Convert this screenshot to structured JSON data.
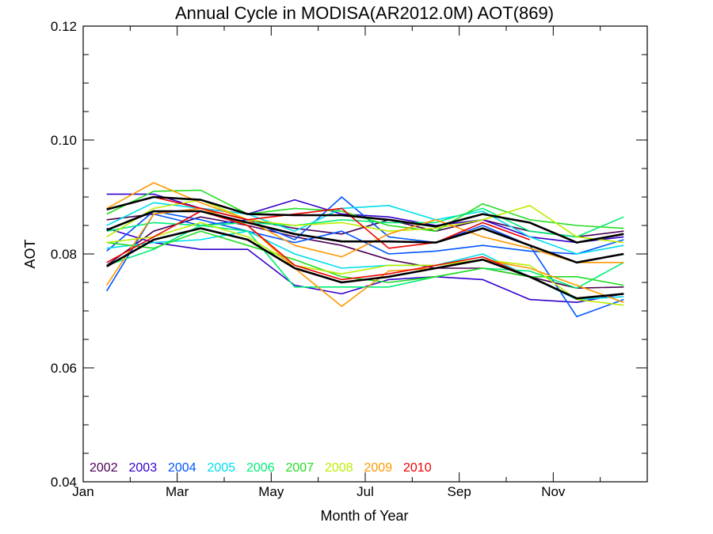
{
  "chart_data": {
    "type": "line",
    "title": "Annual Cycle in MODISA(AR2012.0M) AOT(869)",
    "xlabel": "Month of Year",
    "ylabel": "AOT",
    "xlim": [
      0,
      12
    ],
    "ylim": [
      0.04,
      0.12
    ],
    "x_ticks": [
      0,
      2,
      4,
      6,
      8,
      10
    ],
    "x_tick_labels": [
      "Jan",
      "Mar",
      "May",
      "Jul",
      "Sep",
      "Nov"
    ],
    "y_ticks": [
      0.04,
      0.06,
      0.08,
      0.1,
      0.12
    ],
    "y_tick_labels": [
      "0.04",
      "0.06",
      "0.08",
      "0.10",
      "0.12"
    ],
    "grid": false,
    "legend_position": "bottom-left",
    "x": [
      0.5,
      1.5,
      2.5,
      3.5,
      4.5,
      5.5,
      6.5,
      7.5,
      8.5,
      9.5,
      10.5,
      11.5
    ],
    "series": [
      {
        "name": "2002",
        "color": "#4b0055",
        "values": [
          0.078,
          0.084,
          0.0865,
          0.085,
          0.083,
          0.0815,
          0.079,
          0.0775,
          0.0775,
          0.076,
          0.074,
          0.0742
        ]
      },
      {
        "name": "2002",
        "color": "#4b0055",
        "values": [
          0.086,
          0.087,
          0.088,
          0.086,
          0.0845,
          0.0835,
          0.086,
          0.084,
          0.086,
          0.084,
          0.083,
          0.084
        ]
      },
      {
        "name": "2003",
        "color": "#3300cc",
        "values": [
          0.0905,
          0.0905,
          0.088,
          0.087,
          0.0895,
          0.087,
          0.0865,
          0.085,
          0.086,
          0.083,
          0.082,
          0.083
        ]
      },
      {
        "name": "2003",
        "color": "#3300cc",
        "values": [
          0.0845,
          0.082,
          0.0808,
          0.0808,
          0.0745,
          0.073,
          0.0755,
          0.076,
          0.0755,
          0.072,
          0.0715,
          0.073
        ]
      },
      {
        "name": "2004",
        "color": "#0055ff",
        "values": [
          0.0735,
          0.087,
          0.085,
          0.086,
          0.0825,
          0.09,
          0.083,
          0.082,
          0.085,
          0.0815,
          0.069,
          0.072
        ]
      },
      {
        "name": "2004",
        "color": "#0055ff",
        "values": [
          0.0805,
          0.0875,
          0.086,
          0.084,
          0.082,
          0.084,
          0.08,
          0.0805,
          0.0815,
          0.0805,
          0.08,
          0.0825
        ]
      },
      {
        "name": "2005",
        "color": "#00ddee",
        "values": [
          0.081,
          0.082,
          0.0825,
          0.084,
          0.08,
          0.0775,
          0.078,
          0.078,
          0.08,
          0.076,
          0.072,
          0.0725
        ]
      },
      {
        "name": "2005",
        "color": "#00ddee",
        "values": [
          0.085,
          0.089,
          0.088,
          0.087,
          0.084,
          0.088,
          0.0885,
          0.086,
          0.0875,
          0.083,
          0.08,
          0.0815
        ]
      },
      {
        "name": "2006",
        "color": "#00ee77",
        "values": [
          0.078,
          0.0808,
          0.085,
          0.084,
          0.0742,
          0.0742,
          0.0742,
          0.076,
          0.0775,
          0.077,
          0.074,
          0.0785
        ]
      },
      {
        "name": "2006",
        "color": "#00ee77",
        "values": [
          0.084,
          0.0855,
          0.085,
          0.0855,
          0.085,
          0.086,
          0.0855,
          0.0855,
          0.088,
          0.084,
          0.083,
          0.0865
        ]
      },
      {
        "name": "2007",
        "color": "#22dd22",
        "values": [
          0.087,
          0.091,
          0.0912,
          0.087,
          0.088,
          0.0875,
          0.085,
          0.084,
          0.0888,
          0.086,
          0.085,
          0.0845
        ]
      },
      {
        "name": "2007",
        "color": "#22dd22",
        "values": [
          0.082,
          0.081,
          0.084,
          0.0815,
          0.079,
          0.076,
          0.075,
          0.076,
          0.0775,
          0.076,
          0.076,
          0.0745
        ]
      },
      {
        "name": "2008",
        "color": "#bbee00",
        "values": [
          0.083,
          0.088,
          0.0895,
          0.086,
          0.085,
          0.0855,
          0.084,
          0.0845,
          0.086,
          0.0885,
          0.083,
          0.082
        ]
      },
      {
        "name": "2008",
        "color": "#bbee00",
        "values": [
          0.082,
          0.083,
          0.0855,
          0.083,
          0.078,
          0.0765,
          0.078,
          0.078,
          0.079,
          0.078,
          0.072,
          0.071
        ]
      },
      {
        "name": "2009",
        "color": "#ff9900",
        "values": [
          0.0745,
          0.087,
          0.088,
          0.085,
          0.0775,
          0.0708,
          0.077,
          0.0775,
          0.079,
          0.0775,
          0.0745,
          0.0715
        ]
      },
      {
        "name": "2009",
        "color": "#ff9900",
        "values": [
          0.088,
          0.0925,
          0.089,
          0.086,
          0.0815,
          0.0795,
          0.0835,
          0.086,
          0.083,
          0.081,
          0.0785,
          0.0785
        ]
      },
      {
        "name": "2010",
        "color": "#ee0000",
        "values": [
          0.0878,
          0.09,
          0.088,
          0.086,
          0.087,
          0.088,
          0.081,
          0.082,
          0.0855,
          0.0825,
          null,
          null
        ]
      },
      {
        "name": "2010",
        "color": "#ee0000",
        "values": [
          0.0785,
          0.083,
          0.0875,
          0.085,
          0.078,
          0.0755,
          0.0765,
          0.078,
          0.0795,
          0.076,
          null,
          null
        ]
      },
      {
        "name": "",
        "color": "#000000",
        "width": 2.6,
        "values": [
          0.0878,
          0.09,
          0.0895,
          0.087,
          0.0868,
          0.0868,
          0.086,
          0.0848,
          0.087,
          0.0855,
          0.082,
          0.0835
        ]
      },
      {
        "name": "",
        "color": "#000000",
        "width": 2.6,
        "values": [
          0.0842,
          0.0875,
          0.0875,
          0.0855,
          0.0835,
          0.0822,
          0.0822,
          0.082,
          0.0845,
          0.0815,
          0.0785,
          0.08
        ]
      },
      {
        "name": "",
        "color": "#000000",
        "width": 2.6,
        "values": [
          0.0778,
          0.0825,
          0.0845,
          0.0825,
          0.0775,
          0.075,
          0.076,
          0.0775,
          0.079,
          0.076,
          0.0722,
          0.073
        ]
      }
    ],
    "legend": [
      {
        "label": "2002",
        "color": "#4b0055"
      },
      {
        "label": "2003",
        "color": "#3300cc"
      },
      {
        "label": "2004",
        "color": "#0055ff"
      },
      {
        "label": "2005",
        "color": "#00ddee"
      },
      {
        "label": "2006",
        "color": "#00ee77"
      },
      {
        "label": "2007",
        "color": "#22dd22"
      },
      {
        "label": "2008",
        "color": "#bbee00"
      },
      {
        "label": "2009",
        "color": "#ff9900"
      },
      {
        "label": "2010",
        "color": "#ee0000"
      }
    ]
  }
}
